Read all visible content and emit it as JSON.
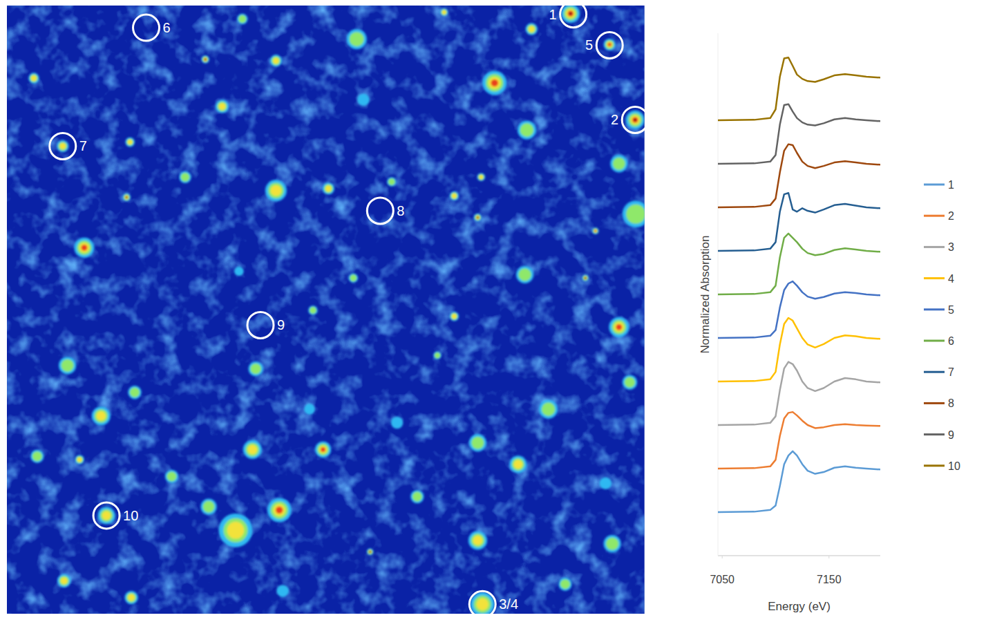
{
  "chart_data": [
    {
      "type": "image_map",
      "xlim": [
        0,
        948
      ],
      "ylim": [
        0,
        904
      ],
      "tick_labels": false,
      "hotspots": {
        "x": [
          838,
          780,
          896,
          934,
          725,
          773,
          910,
          935,
          910,
          926,
          83,
          40,
          295,
          400,
          320,
          183,
          265,
          178,
          115,
          400,
          478,
          572,
          665,
          700,
          705,
          860,
          875,
          770,
          665,
          515,
          345,
          455,
          370,
          90,
          140,
          190,
          365,
          470,
          405,
          340,
          300,
          540,
          108,
          700,
          760,
          700,
          805,
          580,
          640,
          85,
          185,
          707,
          900,
          890,
          45,
          520,
          530,
          350,
          650,
          450,
          245,
          610,
          830,
          410,
          148
        ],
        "y": [
          12,
          35,
          58,
          170,
          115,
          185,
          235,
          310,
          478,
          560,
          209,
          108,
          80,
          82,
          150,
          203,
          255,
          285,
          360,
          275,
          272,
          262,
          283,
          315,
          255,
          405,
          335,
          400,
          462,
          405,
          395,
          453,
          540,
          535,
          610,
          575,
          660,
          660,
          750,
          780,
          745,
          812,
          675,
          650,
          682,
          795,
          600,
          620,
          520,
          855,
          880,
          890,
          800,
          710,
          670,
          50,
          140,
          20,
          10,
          600,
          700,
          730,
          860,
          870,
          758
        ],
        "size": [
          14,
          9,
          9,
          14,
          18,
          14,
          13,
          20,
          15,
          11,
          9,
          8,
          6,
          9,
          10,
          7,
          9,
          6,
          15,
          16,
          9,
          7,
          7,
          6,
          6,
          5,
          5,
          13,
          7,
          7,
          7,
          7,
          11,
          13,
          14,
          10,
          14,
          12,
          18,
          25,
          12,
          5,
          7,
          13,
          13,
          14,
          14,
          9,
          6,
          10,
          10,
          18,
          13,
          9,
          10,
          15,
          9,
          8,
          6,
          8,
          10,
          10,
          10,
          9,
          13
        ],
        "intensity": [
          1,
          0.7,
          0.9,
          1,
          0.8,
          0.5,
          0.5,
          0.5,
          0.8,
          0.5,
          0.6,
          0.6,
          0.95,
          0.7,
          0.6,
          0.6,
          0.5,
          0.95,
          0.8,
          0.7,
          0.7,
          0.5,
          0.7,
          0.95,
          0.6,
          0.95,
          0.9,
          0.5,
          0.6,
          0.5,
          0.4,
          0.5,
          0.5,
          0.5,
          0.6,
          0.5,
          0.7,
          0.9,
          0.8,
          0.6,
          0.5,
          1,
          0.7,
          0.5,
          0.6,
          0.6,
          0.5,
          0.4,
          0.5,
          0.7,
          0.6,
          0.7,
          0.5,
          0.4,
          0.5,
          0.5,
          0.4,
          0.5,
          0.6,
          0.4,
          0.5,
          0.5,
          0.5,
          0.4,
          0.7
        ]
      },
      "spots": {
        "labels": [
          "1",
          "2",
          "3/4",
          "5",
          "6",
          "7",
          "8",
          "9",
          "10"
        ],
        "x": [
          842,
          934,
          707,
          896,
          207,
          83,
          555,
          377,
          148
        ],
        "y": [
          13,
          170,
          890,
          59,
          33,
          209,
          305,
          475,
          758
        ]
      }
    },
    {
      "type": "line",
      "x_label": "Energy (eV)",
      "y_label": "Normalized Absorption",
      "xlim": [
        7046,
        7198
      ],
      "xticks": [
        7050,
        7150
      ],
      "ylim": [
        0,
        12
      ],
      "tick_labels": "x",
      "legend": "right",
      "x": [
        7046,
        7080,
        7095,
        7100,
        7104,
        7108,
        7112,
        7116,
        7120,
        7125,
        7130,
        7137,
        7145,
        7155,
        7165,
        7175,
        7185,
        7198
      ],
      "series": [
        {
          "name": "1",
          "color": "#5b9bd5",
          "values": [
            1,
            1.01,
            1.05,
            1.15,
            1.6,
            2.1,
            2.3,
            2.4,
            2.3,
            2.1,
            1.95,
            1.88,
            1.92,
            2.02,
            2.05,
            2.02,
            2,
            1.98
          ]
        },
        {
          "name": "2",
          "color": "#ed7d31",
          "values": [
            2,
            2.01,
            2.05,
            2.2,
            2.75,
            3.15,
            3.28,
            3.3,
            3.22,
            3.1,
            3,
            2.93,
            2.95,
            3,
            3.02,
            3,
            2.99,
            2.98
          ]
        },
        {
          "name": "3",
          "color": "#a5a5a5",
          "values": [
            3,
            3.01,
            3.05,
            3.2,
            3.8,
            4.3,
            4.45,
            4.4,
            4.25,
            4,
            3.85,
            3.78,
            3.85,
            4,
            4.08,
            4.05,
            4,
            3.98
          ]
        },
        {
          "name": "4",
          "color": "#ffc000",
          "values": [
            4,
            4.01,
            4.05,
            4.22,
            4.85,
            5.32,
            5.46,
            5.4,
            5.22,
            5,
            4.85,
            4.78,
            4.86,
            5,
            5.06,
            5.04,
            5,
            4.98
          ]
        },
        {
          "name": "5",
          "color": "#4472c4",
          "values": [
            5,
            5.01,
            5.05,
            5.18,
            5.7,
            6.1,
            6.25,
            6.3,
            6.2,
            6.05,
            5.95,
            5.9,
            5.94,
            6.02,
            6.05,
            6.03,
            6,
            5.98
          ]
        },
        {
          "name": "6",
          "color": "#70ad47",
          "values": [
            6,
            6.01,
            6.05,
            6.2,
            6.85,
            7.3,
            7.4,
            7.3,
            7.2,
            7.05,
            6.95,
            6.9,
            6.93,
            7.02,
            7.06,
            7.03,
            7,
            6.98
          ]
        },
        {
          "name": "7",
          "color": "#255e91",
          "values": [
            7,
            7.01,
            7.05,
            7.2,
            7.9,
            8.3,
            8.33,
            7.95,
            7.9,
            7.98,
            7.92,
            7.88,
            7.95,
            8.05,
            8.08,
            8.04,
            8,
            7.98
          ]
        },
        {
          "name": "8",
          "color": "#9e480e",
          "values": [
            8,
            8.01,
            8.05,
            8.2,
            8.8,
            9.3,
            9.45,
            9.43,
            9.25,
            9.05,
            8.95,
            8.9,
            8.95,
            9.03,
            9.06,
            9.03,
            9,
            8.98
          ]
        },
        {
          "name": "9",
          "color": "#636363",
          "values": [
            9,
            9.01,
            9.05,
            9.2,
            9.9,
            10.35,
            10.37,
            10.2,
            10.05,
            9.95,
            9.9,
            9.88,
            9.93,
            10.02,
            10.05,
            10.02,
            10,
            9.98
          ]
        },
        {
          "name": "10",
          "color": "#997300",
          "values": [
            10,
            10.01,
            10.05,
            10.25,
            11,
            11.42,
            11.44,
            11.25,
            11.05,
            10.95,
            10.9,
            10.88,
            10.94,
            11.03,
            11.06,
            11.03,
            11,
            10.98
          ]
        }
      ]
    }
  ]
}
